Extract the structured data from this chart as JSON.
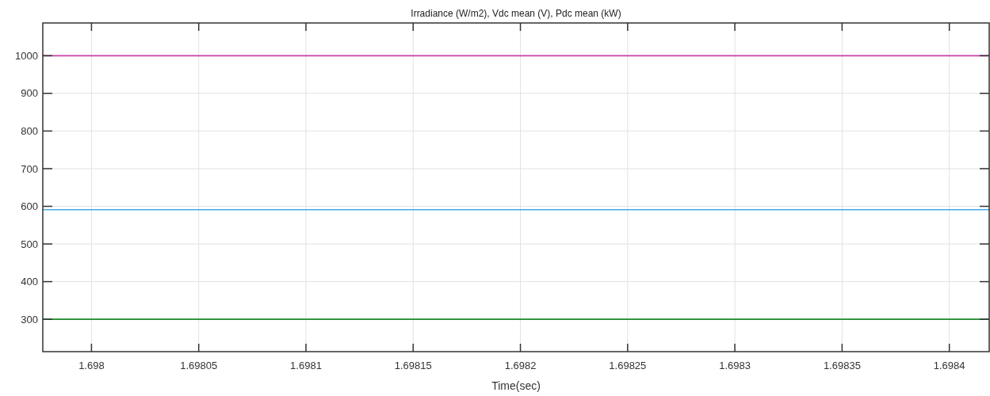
{
  "chart_data": {
    "type": "line",
    "title": "Irradiance (W/m2), Vdc mean (V), Pdc mean (kW)",
    "xlabel": "Time(sec)",
    "x": [
      1.6979773,
      1.6984186
    ],
    "series": [
      {
        "color": "#cc3fa8",
        "values": [
          1000,
          1000
        ]
      },
      {
        "color": "#3fa9e8",
        "values": [
          591,
          591
        ]
      },
      {
        "color": "#1a8a2a",
        "values": [
          300,
          300
        ]
      }
    ],
    "xlim": [
      1.6979773,
      1.6984186
    ],
    "ylim": [
      214,
      1087
    ],
    "xticks": [
      1.698,
      1.69805,
      1.6981,
      1.69815,
      1.6982,
      1.69825,
      1.6983,
      1.69835,
      1.6984
    ],
    "yticks": [
      300,
      400,
      500,
      600,
      700,
      800,
      900,
      1000
    ],
    "grid": true,
    "marker": "none",
    "line_style": "solid"
  }
}
